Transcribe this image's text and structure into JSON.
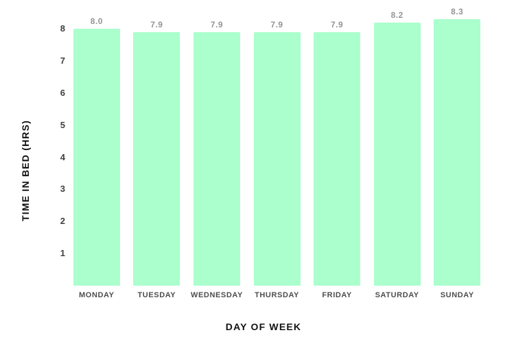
{
  "chart_data": {
    "type": "bar",
    "title": "",
    "categories": [
      "MONDAY",
      "TUESDAY",
      "WEDNESDAY",
      "THURSDAY",
      "FRIDAY",
      "SATURDAY",
      "SUNDAY"
    ],
    "values": [
      8.0,
      7.9,
      7.9,
      7.9,
      7.9,
      8.2,
      8.3
    ],
    "value_labels": [
      "8.0",
      "7.9",
      "7.9",
      "7.9",
      "7.9",
      "8.2",
      "8.3"
    ],
    "xlabel": "DAY OF WEEK",
    "ylabel": "TIME IN BED (HRS)",
    "yticks": [
      1,
      2,
      3,
      4,
      5,
      6,
      7,
      8
    ],
    "ylim": [
      0,
      8.9
    ],
    "grid": false,
    "legend": null,
    "colors": {
      "bar": "#aaffcc",
      "value_label": "#949494",
      "tick_label": "#3f3f3f",
      "axis_title": "#111111",
      "background": "#ffffff"
    }
  }
}
